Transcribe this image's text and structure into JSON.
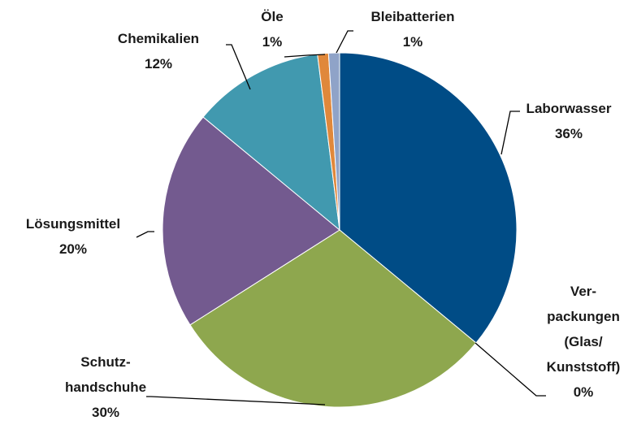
{
  "chart_data": {
    "type": "pie",
    "categories": [
      "Laborwasser",
      "Ver-\npackungen\n(Glas/\nKunststoff)",
      "Schutz-\nhandschuhe",
      "Lösungsmittel",
      "Chemikalien",
      "Öle",
      "Bleibatterien"
    ],
    "values": [
      36,
      0,
      30,
      20,
      12,
      1,
      1
    ],
    "value_labels": [
      "36%",
      "0%",
      "30%",
      "20%",
      "12%",
      "1%",
      "1%"
    ],
    "colors": [
      "#004c86",
      "#b0b0b0",
      "#8ea74e",
      "#735a8f",
      "#4199af",
      "#e0883b",
      "#8fa3c8"
    ]
  }
}
